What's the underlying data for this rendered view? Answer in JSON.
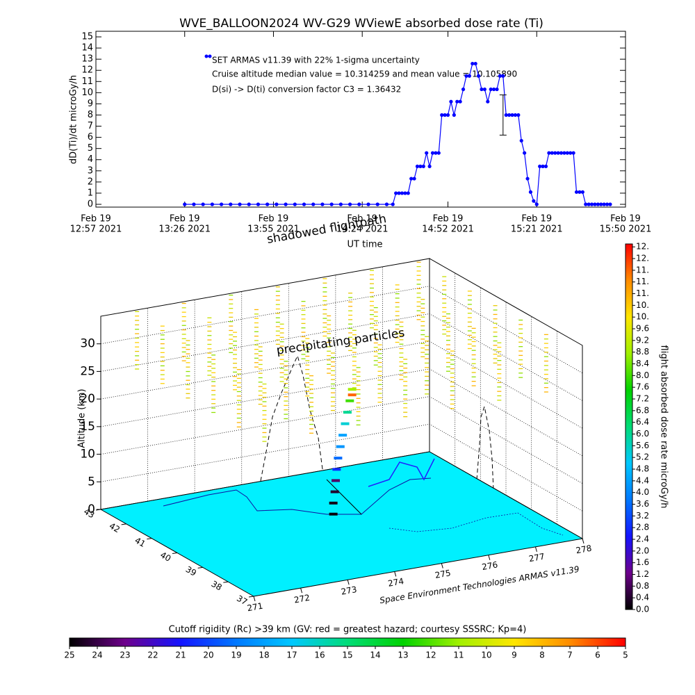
{
  "chart_data": [
    {
      "type": "line",
      "title": "WVE_BALLOON2024 WV-G29 WViewE absorbed dose rate (Ti)",
      "ylabel": "dD(Ti)/dt microGy/h",
      "xlabel": "UT time",
      "annotations": [
        "SET ARMAS v11.39 with 22% 1-sigma uncertainty",
        "Cruise altitude median value = 10.314259 and mean value = 10.105890",
        "D(si) -> D(ti) conversion factor C3 = 1.36432"
      ],
      "xlim": [
        "12:57",
        "15:50"
      ],
      "xticks": [
        {
          "value": "12:57",
          "label": [
            "Feb 19",
            "12:57 2021"
          ]
        },
        {
          "value": "13:26",
          "label": [
            "Feb 19",
            "13:26 2021"
          ]
        },
        {
          "value": "13:55",
          "label": [
            "Feb 19",
            "13:55 2021"
          ]
        },
        {
          "value": "14:24",
          "label": [
            "Feb 19",
            "14:24 2021"
          ]
        },
        {
          "value": "14:52",
          "label": [
            "Feb 19",
            "14:52 2021"
          ]
        },
        {
          "value": "15:21",
          "label": [
            "Feb 19",
            "15:21 2021"
          ]
        },
        {
          "value": "15:50",
          "label": [
            "Feb 19",
            "15:50 2021"
          ]
        }
      ],
      "ylim": [
        -0.25,
        15.5
      ],
      "yticks": [
        0,
        1,
        2,
        3,
        4,
        5,
        6,
        7,
        8,
        9,
        10,
        11,
        12,
        13,
        14,
        15
      ],
      "series": [
        {
          "color": "#0000ff",
          "x": [
            "13:26",
            "13:29",
            "13:32",
            "13:35",
            "13:38",
            "13:41",
            "13:44",
            "13:47",
            "13:50",
            "13:53",
            "13:56",
            "13:59",
            "14:02",
            "14:05",
            "14:08",
            "14:11",
            "14:14",
            "14:17",
            "14:20",
            "14:23",
            "14:26",
            "14:29",
            "14:32",
            "14:34",
            "14:35",
            "14:36",
            "14:37",
            "14:38",
            "14:39",
            "14:40",
            "14:41",
            "14:42",
            "14:43",
            "14:44",
            "14:45",
            "14:46",
            "14:47",
            "14:48",
            "14:49",
            "14:50",
            "14:51",
            "14:52",
            "14:53",
            "14:54",
            "14:55",
            "14:56",
            "14:57",
            "14:58",
            "14:59",
            "15:00",
            "15:01",
            "15:02",
            "15:03",
            "15:04",
            "15:05",
            "15:06",
            "15:07",
            "15:08",
            "15:09",
            "15:10",
            "15:11",
            "15:12",
            "15:13",
            "15:14",
            "15:15",
            "15:16",
            "15:17",
            "15:18",
            "15:19",
            "15:20",
            "15:21",
            "15:22",
            "15:23",
            "15:24",
            "15:25",
            "15:26",
            "15:27",
            "15:28",
            "15:29",
            "15:30",
            "15:31",
            "15:32",
            "15:33",
            "15:34",
            "15:35",
            "15:36",
            "15:37",
            "15:38",
            "15:39",
            "15:40",
            "15:41",
            "15:42",
            "15:43",
            "15:44",
            "15:45"
          ],
          "values": [
            0,
            0,
            0,
            0,
            0,
            0,
            0,
            0,
            0,
            0,
            0,
            0,
            0,
            0,
            0,
            0,
            0,
            0,
            0,
            0,
            0,
            0,
            0,
            0,
            1,
            1,
            1,
            1,
            1,
            2.3,
            2.3,
            3.4,
            3.4,
            3.4,
            4.6,
            3.4,
            4.6,
            4.6,
            4.6,
            8,
            8,
            8,
            9.2,
            8,
            9.2,
            9.2,
            10.3,
            11.5,
            11.5,
            12.6,
            12.6,
            11.5,
            10.3,
            10.3,
            9.2,
            10.3,
            10.3,
            10.3,
            11.5,
            11.5,
            8,
            8,
            8,
            8,
            8,
            5.7,
            4.6,
            2.3,
            1.1,
            0.3,
            0,
            3.4,
            3.4,
            3.4,
            4.6,
            4.6,
            4.6,
            4.6,
            4.6,
            4.6,
            4.6,
            4.6,
            4.6,
            1.1,
            1.1,
            1.1,
            0,
            0,
            0,
            0,
            0,
            0,
            0,
            0,
            0
          ]
        }
      ],
      "error_bars": [
        {
          "x": "15:10",
          "value": 8,
          "error": 1.8
        }
      ]
    },
    {
      "type": "scatter3d",
      "zlabel": "Altitude (km)",
      "zlim": [
        0,
        35
      ],
      "zticks": [
        0,
        5,
        10,
        15,
        20,
        25,
        30
      ],
      "lonlim": [
        271,
        278
      ],
      "lonticks": [
        271,
        272,
        273,
        274,
        275,
        276,
        277,
        278
      ],
      "latlim": [
        37,
        43
      ],
      "latticks": [
        37,
        38,
        39,
        40,
        41,
        42,
        43
      ],
      "annotations": [
        "precipitating particles",
        "shadowed flightpath"
      ],
      "credit": "Space Environment Technologies ARMAS v11.39",
      "floor_color": "#00f0ff",
      "colormap": [
        "#000000",
        "#6e008c",
        "#1414ff",
        "#0078ff",
        "#00c8ff",
        "#00dc78",
        "#00d200",
        "#a0f000",
        "#ffe600",
        "#ff8c00",
        "#ff0000"
      ],
      "track": {
        "lon": [
          274.65,
          274.65,
          274.68,
          274.7,
          274.72,
          274.75,
          274.8,
          274.85,
          274.9,
          274.95,
          275.0,
          275.05,
          275.05
        ],
        "lat": [
          40.6,
          40.6,
          40.6,
          40.6,
          40.6,
          40.6,
          40.6,
          40.6,
          40.6,
          40.6,
          40.6,
          40.6,
          40.6
        ],
        "alt": [
          0,
          2,
          4,
          6,
          8,
          10,
          12,
          14,
          16,
          18,
          20,
          21,
          22
        ],
        "dose": [
          0.1,
          0.2,
          0.4,
          0.9,
          2.8,
          3.6,
          4.2,
          4.4,
          5.4,
          6.0,
          8.0,
          11.6,
          8.8
        ]
      },
      "colorbar": {
        "label": "flight absorbed dose rate microGy/h",
        "lim": [
          0,
          12.5
        ],
        "ticks": [
          {
            "value": 0,
            "label": "0.0"
          },
          {
            "value": 0.4,
            "label": "0.4"
          },
          {
            "value": 0.8,
            "label": "0.8"
          },
          {
            "value": 1.2,
            "label": "1.2"
          },
          {
            "value": 1.6,
            "label": "1.6"
          },
          {
            "value": 2.0,
            "label": "2.0"
          },
          {
            "value": 2.4,
            "label": "2.4"
          },
          {
            "value": 2.8,
            "label": "2.8"
          },
          {
            "value": 3.2,
            "label": "3.2"
          },
          {
            "value": 3.6,
            "label": "3.6"
          },
          {
            "value": 4.0,
            "label": "4.0"
          },
          {
            "value": 4.4,
            "label": "4.4"
          },
          {
            "value": 4.8,
            "label": "4.8"
          },
          {
            "value": 5.2,
            "label": "5.2"
          },
          {
            "value": 5.6,
            "label": "5.6"
          },
          {
            "value": 6.0,
            "label": "6.0"
          },
          {
            "value": 6.4,
            "label": "6.4"
          },
          {
            "value": 6.8,
            "label": "6.8"
          },
          {
            "value": 7.2,
            "label": "7.2"
          },
          {
            "value": 7.6,
            "label": "7.6"
          },
          {
            "value": 8.0,
            "label": "8.0"
          },
          {
            "value": 8.4,
            "label": "8.4"
          },
          {
            "value": 8.8,
            "label": "8.8"
          },
          {
            "value": 9.2,
            "label": "9.2"
          },
          {
            "value": 9.6,
            "label": "9.6"
          },
          {
            "value": 10.0,
            "label": "10."
          },
          {
            "value": 10.4,
            "label": "10."
          },
          {
            "value": 10.8,
            "label": "11."
          },
          {
            "value": 11.2,
            "label": "11."
          },
          {
            "value": 11.6,
            "label": "11."
          },
          {
            "value": 12.0,
            "label": "12."
          },
          {
            "value": 12.4,
            "label": "12."
          }
        ]
      },
      "rigidity_bar": {
        "label": "Cutoff rigidity (Rc) >39 km (GV: red = greatest hazard; courtesy SSSRC; Kp=4)",
        "lim": [
          25,
          5
        ],
        "ticks": [
          25,
          24,
          23,
          22,
          21,
          20,
          19,
          18,
          17,
          16,
          15,
          14,
          13,
          12,
          11,
          10,
          9,
          8,
          7,
          6,
          5
        ]
      }
    }
  ]
}
